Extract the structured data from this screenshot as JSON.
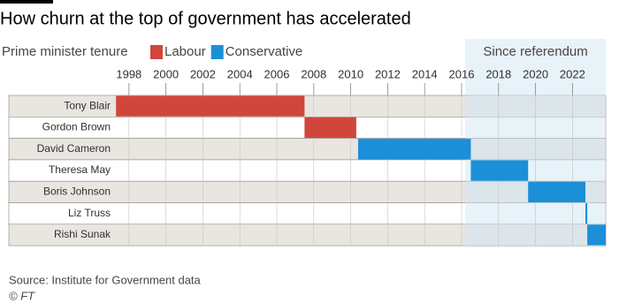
{
  "chart_data": {
    "type": "timeline",
    "title": "How churn at the top of government has accelerated",
    "legend_title": "Prime minister tenure",
    "categories": [
      "Tony Blair",
      "Gordon Brown",
      "David Cameron",
      "Theresa May",
      "Boris Johnson",
      "Liz Truss",
      "Rishi Sunak"
    ],
    "series": [
      {
        "name": "Labour",
        "color": "#d1463b",
        "start": [
          1997.3,
          2007.5,
          null,
          null,
          null,
          null,
          null
        ],
        "end": [
          2007.5,
          2010.3,
          null,
          null,
          null,
          null,
          null
        ]
      },
      {
        "name": "Conservative",
        "color": "#1b8fd8",
        "start": [
          null,
          null,
          2010.4,
          2016.5,
          2019.6,
          2022.7,
          2022.8
        ],
        "end": [
          null,
          null,
          2016.5,
          2019.6,
          2022.7,
          2022.8,
          2023.8
        ]
      }
    ],
    "xlim": [
      1991.5,
      2023.8
    ],
    "xticks": [
      1998,
      2000,
      2002,
      2004,
      2006,
      2008,
      2010,
      2012,
      2014,
      2016,
      2018,
      2020,
      2022
    ],
    "grid": true,
    "highlight": {
      "label": "Since referendum",
      "start": 2016.2
    },
    "source": "Source:  Institute for Government data",
    "credit": "© FT"
  }
}
